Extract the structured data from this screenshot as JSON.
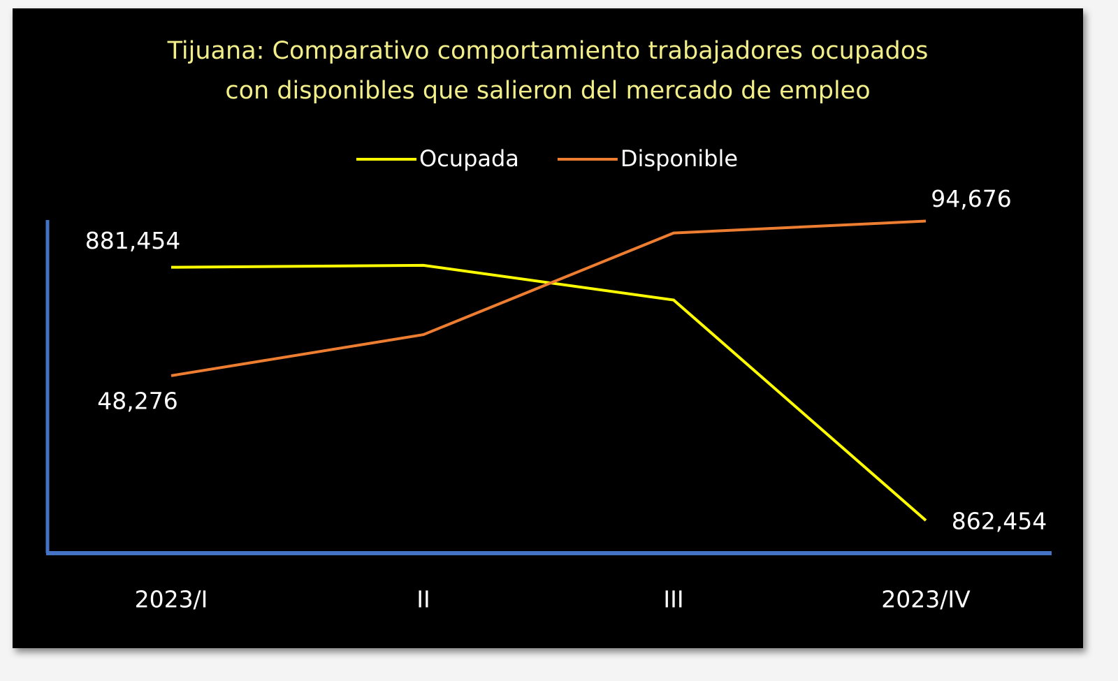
{
  "chart_data": {
    "type": "line",
    "title": [
      "Tijuana: Comparativo comportamiento trabajadores ocupados",
      "con disponibles que salieron del mercado de empleo"
    ],
    "categories": [
      "2023/I",
      "II",
      "III",
      "2023/IV"
    ],
    "series": [
      {
        "name": "Ocupada",
        "color": "#ffff00",
        "values": [
          881454,
          881600,
          879000,
          862454
        ],
        "value_labels": [
          "881,454",
          null,
          null,
          "862,454"
        ]
      },
      {
        "name": "Disponible",
        "color": "#ed7d31",
        "axis": "y2",
        "values": [
          48276,
          60600,
          91100,
          94676
        ],
        "value_labels": [
          "48,276",
          null,
          null,
          "94,676"
        ]
      }
    ],
    "ylim": [
      860000,
      885000
    ],
    "y2lim": [
      -5000,
      95000
    ],
    "axis_color": "#4472c4",
    "legend": "top"
  }
}
